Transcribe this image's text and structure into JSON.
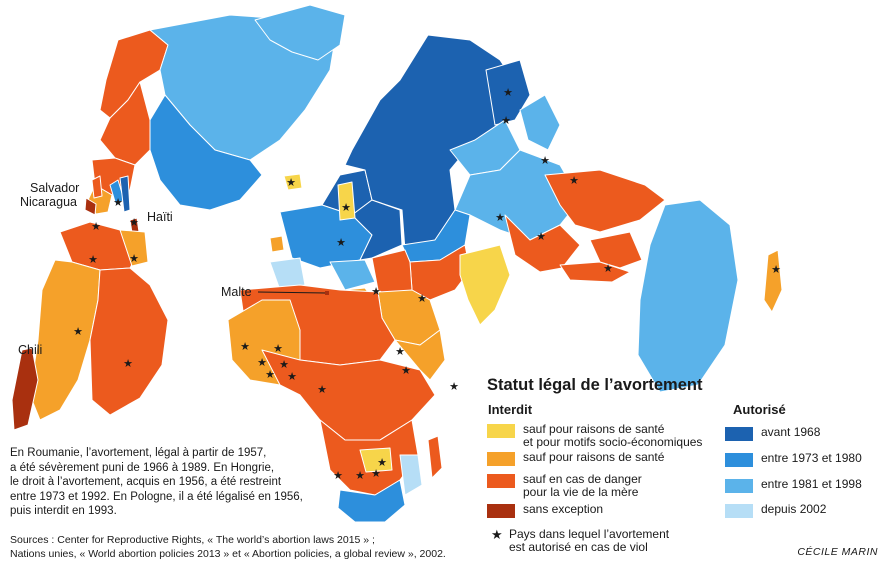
{
  "legend": {
    "title": "Statut légal de l’avortement",
    "forbidden_heading": "Interdit",
    "authorized_heading": "Autorisé",
    "forbidden_items": [
      {
        "label": "sauf pour raisons de santé\net pour motifs socio-économiques",
        "color": "#f7d54a"
      },
      {
        "label": "sauf pour raisons de santé",
        "color": "#f5a12a"
      },
      {
        "label": "sauf en cas de danger\npour la vie de la mère",
        "color": "#ec5a1e"
      },
      {
        "label": "sans exception",
        "color": "#a9300f"
      }
    ],
    "authorized_items": [
      {
        "label": "avant 1968",
        "color": "#1c62b0"
      },
      {
        "label": "entre 1973 et 1980",
        "color": "#2d8fdc"
      },
      {
        "label": "entre 1981 et 1998",
        "color": "#5bb3ea"
      },
      {
        "label": "depuis 2002",
        "color": "#b6def6"
      }
    ],
    "star_icon": "star-icon",
    "star_label": "Pays dans lequel l’avortement\nest autorisé en cas de viol"
  },
  "callouts": {
    "salvador": "Salvador",
    "nicaragua": "Nicaragua",
    "haiti": "Haïti",
    "malte": "Malte",
    "chili": "Chili"
  },
  "note": "En Roumanie, l’avortement, légal à partir de 1957,\na été sévèrement puni de 1966 à 1989. En Hongrie,\nle droit à l’avortement, acquis en 1956, a été restreint\nentre 1973 et 1992. En Pologne, il a été légalisé en 1956,\npuis interdit en 1993.",
  "sources": "Sources : Center for Reproductive Rights, « The world’s abortion laws 2015 » ;\nNations unies, « World abortion policies 2013 » et « Abortion policies, a global review », 2002.",
  "credit": "CÉCILE MARIN"
}
